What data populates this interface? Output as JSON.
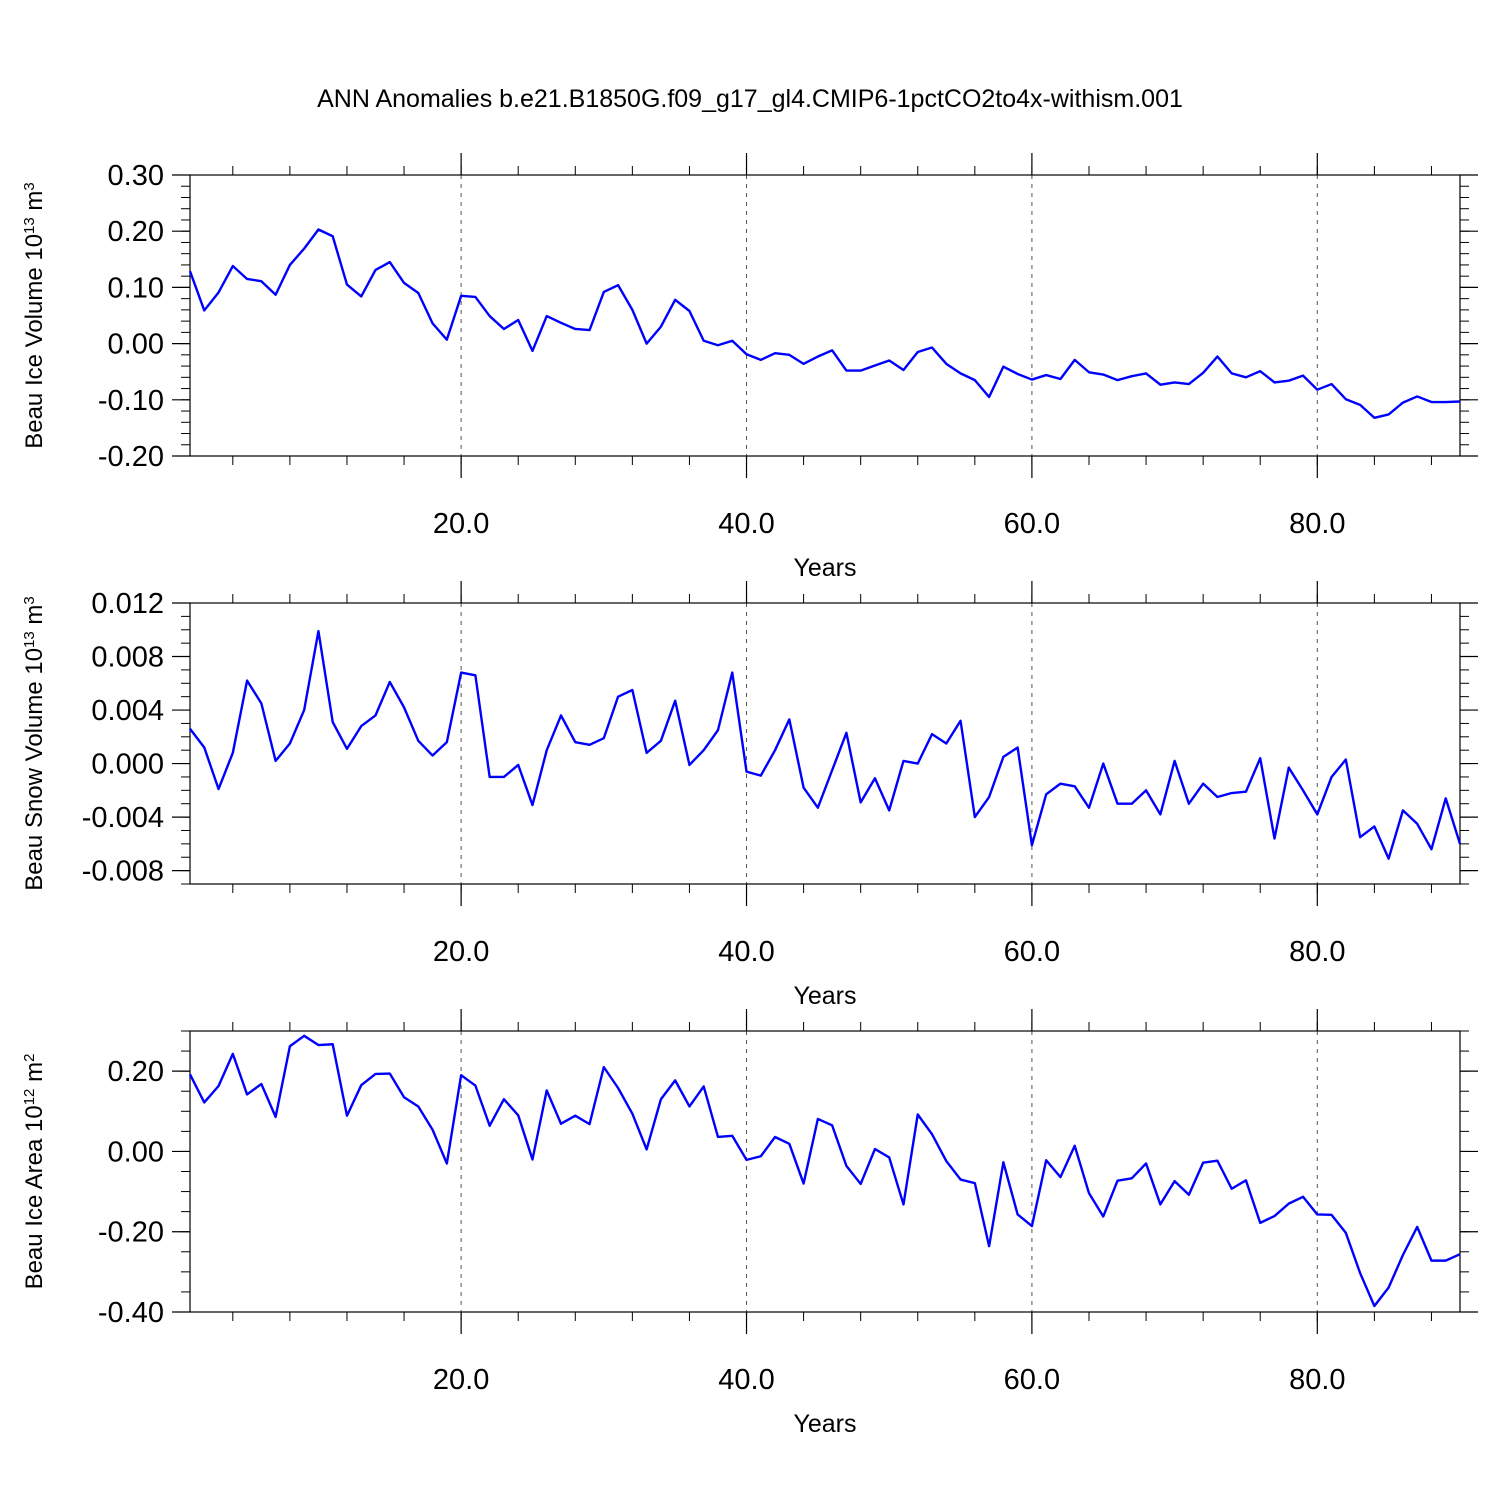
{
  "title": "ANN Anomalies b.e21.B1850G.f09_g17_gl4.CMIP6-1pctCO2to4x-withism.001",
  "colors": {
    "line": "#0000ff",
    "axis": "#000000",
    "refline": "#555555"
  },
  "chart_data": [
    {
      "type": "line",
      "name": "ice-volume",
      "ylabel": {
        "main": "Beau Ice Volume 10",
        "exp": "13",
        "unit": " m",
        "unit_exp": "3"
      },
      "xlabel": "Years",
      "xlim": [
        1,
        90
      ],
      "ylim": [
        -0.2,
        0.3
      ],
      "yticks": [
        -0.2,
        -0.1,
        0.0,
        0.1,
        0.2,
        0.3
      ],
      "ytick_labels": [
        "-0.20",
        "-0.10",
        "0.00",
        "0.10",
        "0.20",
        "0.30"
      ],
      "yminor_step": 0.02,
      "xticks": [
        20,
        40,
        60,
        80
      ],
      "xtick_labels": [
        "20.0",
        "40.0",
        "60.0",
        "80.0"
      ],
      "xminor_step": 4,
      "x_start": 1,
      "values": [
        0.129,
        0.059,
        0.091,
        0.138,
        0.115,
        0.111,
        0.087,
        0.14,
        0.169,
        0.203,
        0.191,
        0.105,
        0.084,
        0.131,
        0.145,
        0.108,
        0.09,
        0.036,
        0.007,
        0.085,
        0.083,
        0.049,
        0.026,
        0.042,
        -0.013,
        0.049,
        0.037,
        0.026,
        0.024,
        0.092,
        0.104,
        0.06,
        0.0,
        0.03,
        0.078,
        0.058,
        0.005,
        -0.003,
        0.005,
        -0.019,
        -0.029,
        -0.017,
        -0.02,
        -0.036,
        -0.023,
        -0.012,
        -0.048,
        -0.048,
        -0.039,
        -0.03,
        -0.047,
        -0.015,
        -0.007,
        -0.036,
        -0.053,
        -0.065,
        -0.095,
        -0.041,
        -0.054,
        -0.064,
        -0.056,
        -0.063,
        -0.029,
        -0.051,
        -0.055,
        -0.065,
        -0.058,
        -0.053,
        -0.073,
        -0.069,
        -0.072,
        -0.052,
        -0.023,
        -0.053,
        -0.06,
        -0.049,
        -0.069,
        -0.066,
        -0.057,
        -0.082,
        -0.072,
        -0.099,
        -0.109,
        -0.132,
        -0.126,
        -0.105,
        -0.094,
        -0.104,
        -0.104,
        -0.103
      ]
    },
    {
      "type": "line",
      "name": "snow-volume",
      "ylabel": {
        "main": "Beau Snow Volume 10",
        "exp": "13",
        "unit": " m",
        "unit_exp": "3"
      },
      "xlabel": "Years",
      "xlim": [
        1,
        90
      ],
      "ylim": [
        -0.009,
        0.012
      ],
      "yticks": [
        -0.008,
        -0.004,
        0.0,
        0.004,
        0.008,
        0.012
      ],
      "ytick_labels": [
        "-0.008",
        "-0.004",
        "0.000",
        "0.004",
        "0.008",
        "0.012"
      ],
      "yminor_step": 0.001,
      "xticks": [
        20,
        40,
        60,
        80
      ],
      "xtick_labels": [
        "20.0",
        "40.0",
        "60.0",
        "80.0"
      ],
      "xminor_step": 4,
      "x_start": 1,
      "values": [
        0.0026,
        0.0012,
        -0.0019,
        0.0008,
        0.0062,
        0.0045,
        0.0002,
        0.0015,
        0.004,
        0.0099,
        0.0031,
        0.0011,
        0.0028,
        0.0036,
        0.0061,
        0.0042,
        0.0017,
        0.0006,
        0.0016,
        0.0068,
        0.0066,
        -0.001,
        -0.001,
        -0.0001,
        -0.0031,
        0.001,
        0.0036,
        0.0016,
        0.0014,
        0.0019,
        0.005,
        0.0055,
        0.0008,
        0.0017,
        0.0047,
        -0.0001,
        0.001,
        0.0025,
        0.0068,
        -0.0006,
        -0.0009,
        0.001,
        0.0033,
        -0.0018,
        -0.0033,
        -0.0005,
        0.0023,
        -0.0029,
        -0.0011,
        -0.0035,
        0.0002,
        0.0,
        0.0022,
        0.0015,
        0.0032,
        -0.004,
        -0.0025,
        0.0005,
        0.0012,
        -0.0061,
        -0.0023,
        -0.0015,
        -0.0017,
        -0.0033,
        0.0,
        -0.003,
        -0.003,
        -0.002,
        -0.0038,
        0.0002,
        -0.003,
        -0.0015,
        -0.0025,
        -0.0022,
        -0.0021,
        0.0004,
        -0.0056,
        -0.0003,
        -0.002,
        -0.0038,
        -0.001,
        0.0003,
        -0.0055,
        -0.0047,
        -0.0071,
        -0.0035,
        -0.0045,
        -0.0064,
        -0.0026,
        -0.006
      ]
    },
    {
      "type": "line",
      "name": "ice-area",
      "ylabel": {
        "main": "Beau Ice Area 10",
        "exp": "12",
        "unit": " m",
        "unit_exp": "2"
      },
      "xlabel": "Years",
      "xlim": [
        1,
        90
      ],
      "ylim": [
        -0.4,
        0.3
      ],
      "yticks": [
        -0.4,
        -0.2,
        0.0,
        0.2
      ],
      "ytick_labels": [
        "-0.40",
        "-0.20",
        "0.00",
        "0.20"
      ],
      "yminor_step": 0.05,
      "xticks": [
        20,
        40,
        60,
        80
      ],
      "xtick_labels": [
        "20.0",
        "40.0",
        "60.0",
        "80.0"
      ],
      "xminor_step": 4,
      "x_start": 1,
      "values": [
        0.192,
        0.122,
        0.163,
        0.243,
        0.142,
        0.168,
        0.086,
        0.262,
        0.288,
        0.265,
        0.267,
        0.089,
        0.165,
        0.193,
        0.194,
        0.135,
        0.112,
        0.054,
        -0.03,
        0.19,
        0.164,
        0.064,
        0.13,
        0.09,
        -0.02,
        0.152,
        0.069,
        0.089,
        0.068,
        0.21,
        0.158,
        0.094,
        0.005,
        0.13,
        0.177,
        0.112,
        0.162,
        0.036,
        0.039,
        -0.021,
        -0.012,
        0.036,
        0.019,
        -0.08,
        0.081,
        0.065,
        -0.036,
        -0.081,
        0.006,
        -0.015,
        -0.132,
        0.092,
        0.043,
        -0.024,
        -0.07,
        -0.079,
        -0.236,
        -0.027,
        -0.157,
        -0.186,
        -0.022,
        -0.064,
        0.014,
        -0.104,
        -0.162,
        -0.073,
        -0.067,
        -0.03,
        -0.132,
        -0.074,
        -0.108,
        -0.028,
        -0.023,
        -0.093,
        -0.072,
        -0.178,
        -0.161,
        -0.13,
        -0.113,
        -0.157,
        -0.158,
        -0.203,
        -0.303,
        -0.385,
        -0.339,
        -0.258,
        -0.188,
        -0.272,
        -0.272,
        -0.256
      ]
    }
  ]
}
